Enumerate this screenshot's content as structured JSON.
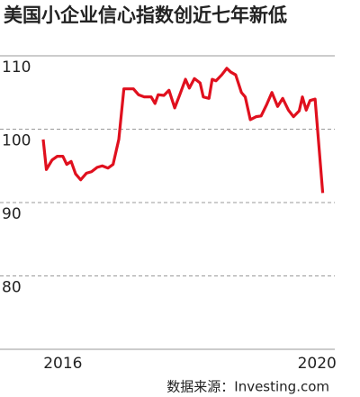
{
  "chart_data": {
    "type": "line",
    "title": "美国小企业信心指数创近七年新低",
    "source": "数据来源：Investing.com",
    "x": [
      2015.69,
      2015.74,
      2015.83,
      2015.91,
      2016.0,
      2016.06,
      2016.13,
      2016.2,
      2016.28,
      2016.37,
      2016.45,
      2016.54,
      2016.62,
      2016.71,
      2016.79,
      2016.88,
      2016.96,
      2017.11,
      2017.19,
      2017.28,
      2017.39,
      2017.45,
      2017.5,
      2017.59,
      2017.67,
      2017.76,
      2017.84,
      2017.93,
      2017.99,
      2018.07,
      2018.16,
      2018.21,
      2018.3,
      2018.35,
      2018.41,
      2018.5,
      2018.58,
      2018.64,
      2018.72,
      2018.81,
      2018.87,
      2018.95,
      2019.04,
      2019.12,
      2019.21,
      2019.29,
      2019.38,
      2019.46,
      2019.55,
      2019.63,
      2019.72,
      2019.77,
      2019.83,
      2019.89,
      2019.97,
      2020.09
    ],
    "series": [
      {
        "color": "#e0101e",
        "values": [
          98.6,
          94.5,
          95.8,
          96.3,
          96.3,
          95.2,
          95.6,
          93.9,
          93.1,
          94.0,
          94.2,
          94.8,
          95.0,
          94.7,
          95.2,
          98.6,
          105.5,
          105.5,
          104.7,
          104.4,
          104.4,
          103.5,
          104.7,
          104.6,
          105.3,
          102.9,
          104.7,
          106.8,
          105.6,
          106.9,
          106.3,
          104.4,
          104.2,
          106.8,
          106.6,
          107.4,
          108.3,
          107.8,
          107.4,
          105.0,
          104.4,
          101.3,
          101.7,
          101.8,
          103.4,
          105.0,
          103.1,
          104.2,
          102.6,
          101.7,
          102.5,
          104.4,
          102.6,
          103.9,
          104.1,
          91.3
        ]
      }
    ],
    "xlim": [
      2015.01,
      2020.28
    ],
    "xticks": [
      2016,
      2020
    ],
    "ylim": [
      70,
      110
    ],
    "yticks": [
      80,
      90,
      100,
      110
    ],
    "grid": true
  }
}
